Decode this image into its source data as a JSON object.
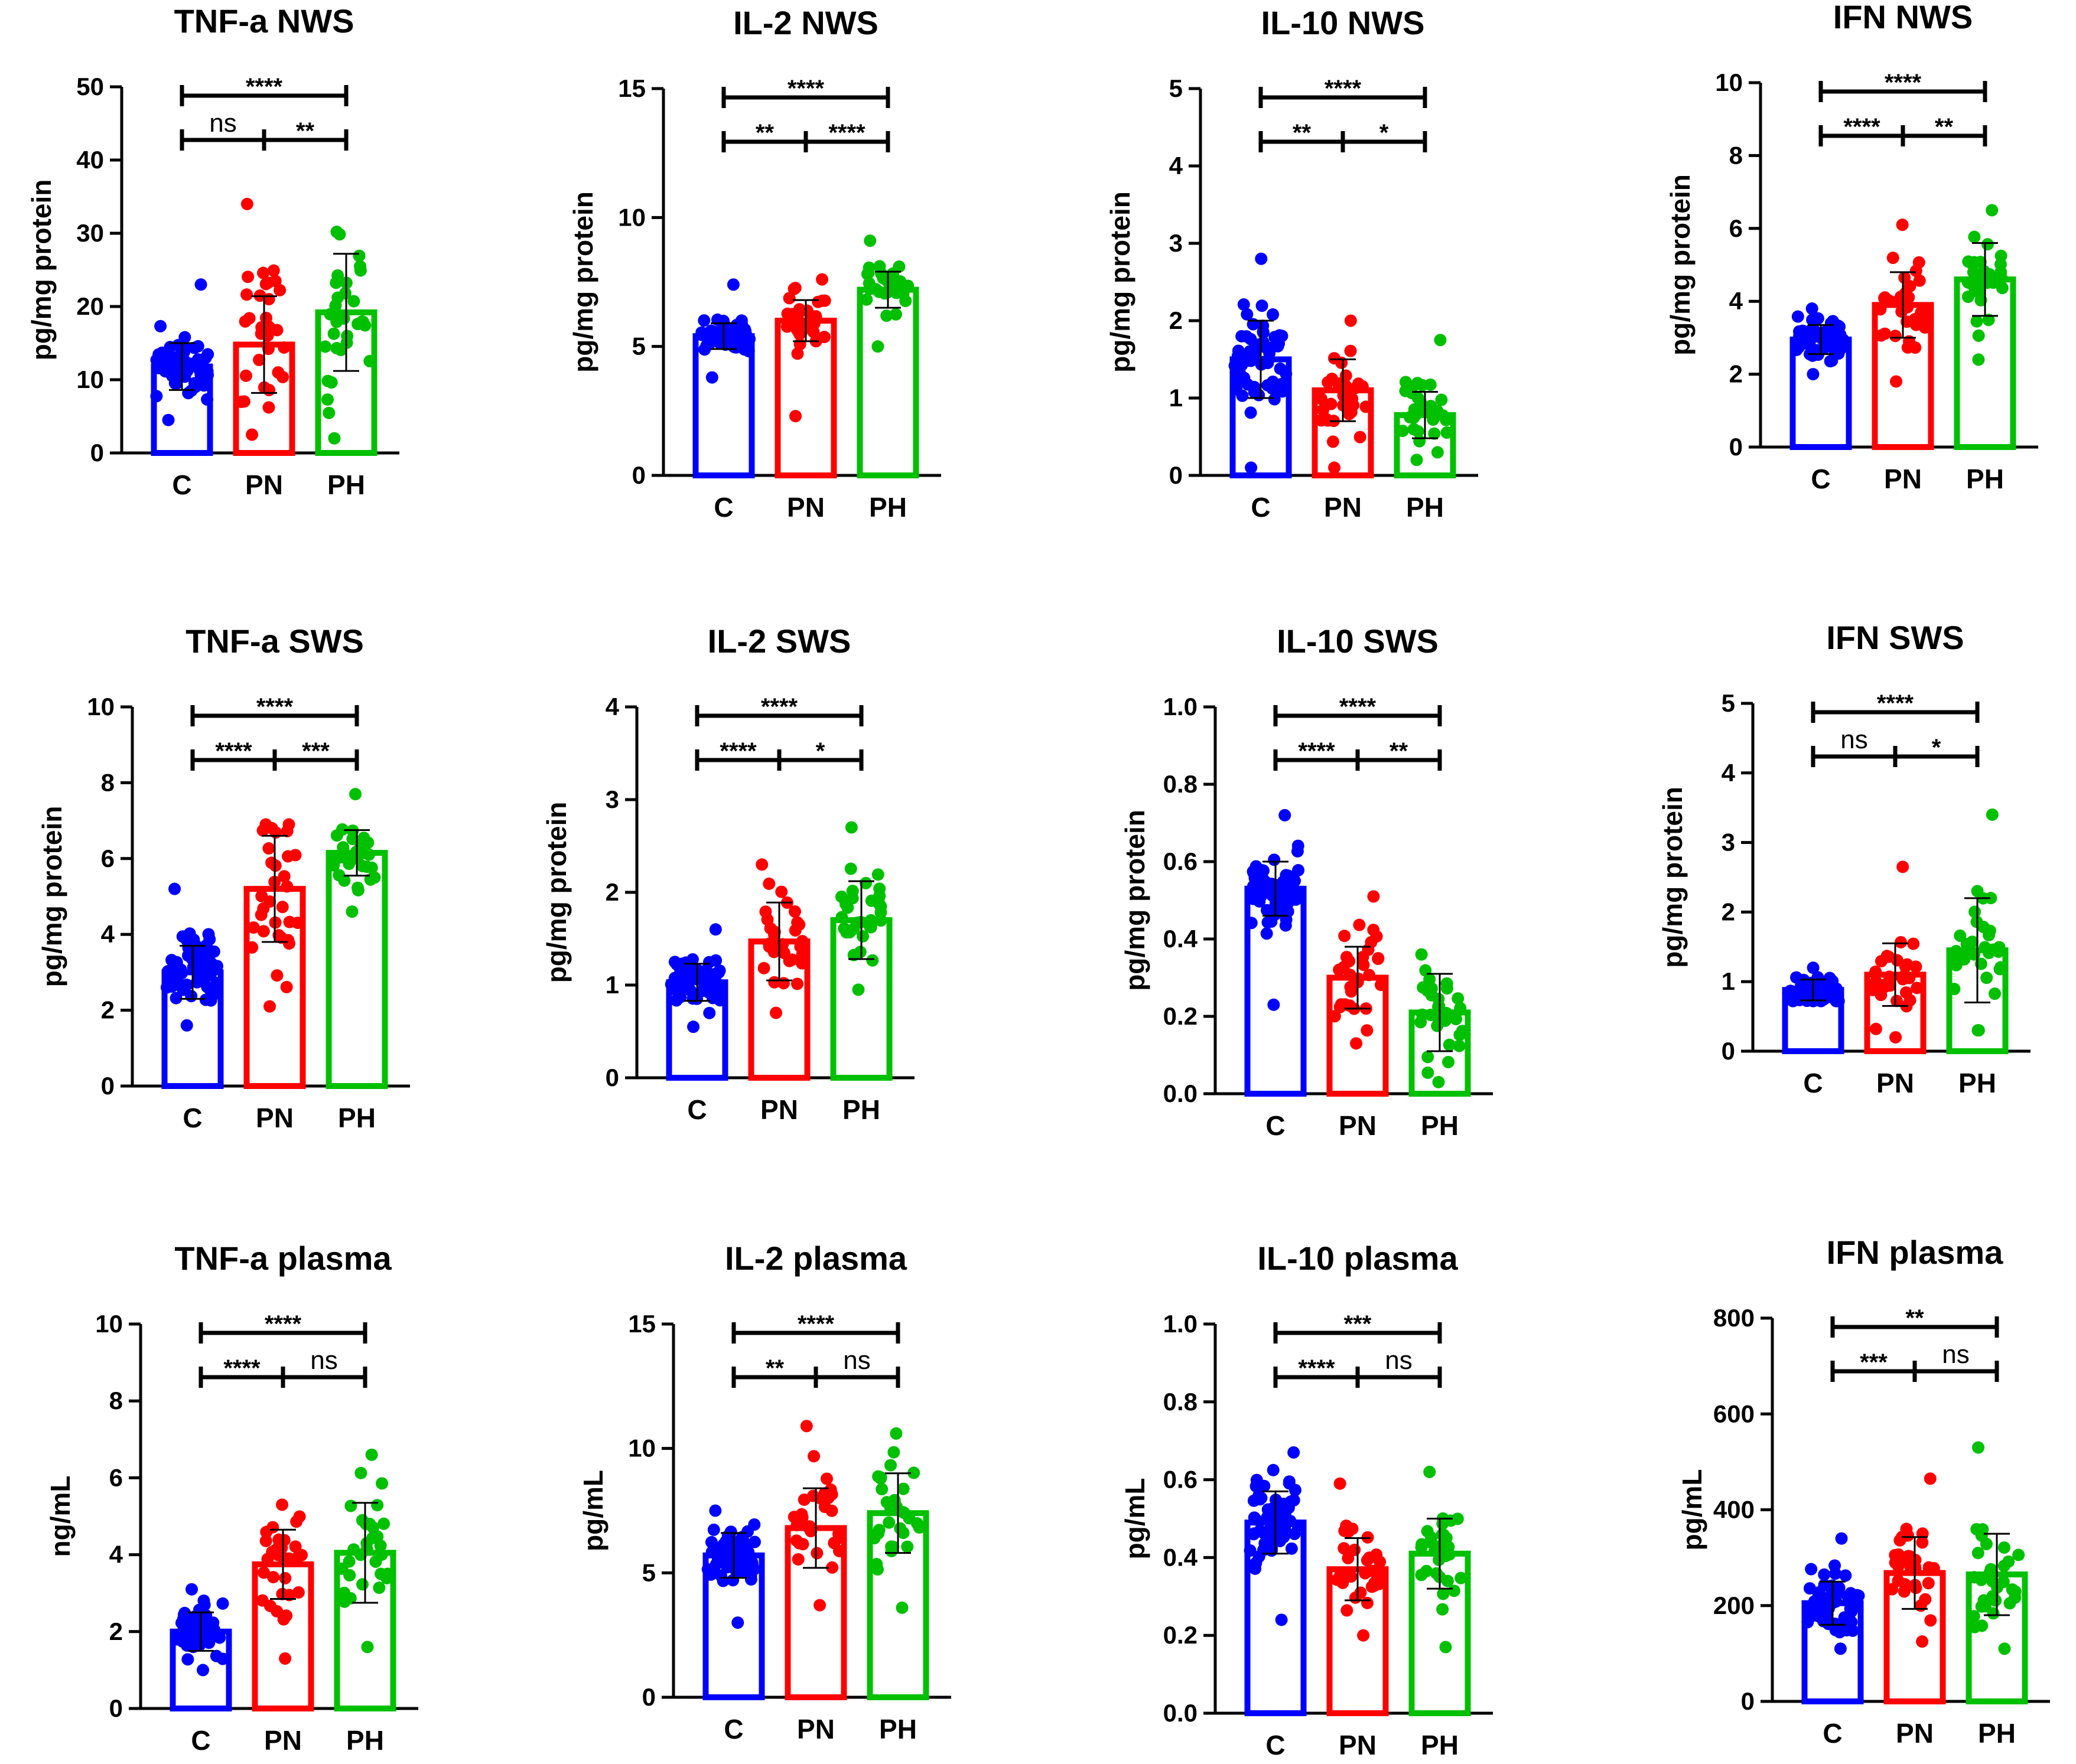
{
  "chart_data": [
    {
      "id": "tnf_nws",
      "type": "bar",
      "title": "TNF-a NWS",
      "ylabel": "pg/mg protein",
      "ylim": [
        0,
        50
      ],
      "yticks": [
        0,
        10,
        20,
        30,
        40,
        50
      ],
      "categories": [
        "C",
        "PN",
        "PH"
      ],
      "colors": [
        "#0000ff",
        "#ff0000",
        "#00c000"
      ],
      "values": [
        11.8,
        14.8,
        19.2
      ],
      "errors": [
        3.2,
        6.6,
        8
      ],
      "points_min": [
        4.5,
        2.5,
        2
      ],
      "points_max": [
        23,
        34,
        30.2
      ],
      "point_counts": [
        60,
        32,
        32
      ],
      "comparisons": [
        {
          "pair": "C-PH",
          "label": "****"
        },
        {
          "pair": "C-PN",
          "label": "ns"
        },
        {
          "pair": "PN-PH",
          "label": "**"
        }
      ]
    },
    {
      "id": "il2_nws",
      "type": "bar",
      "title": "IL-2 NWS",
      "ylabel": "pg/mg protein",
      "ylim": [
        0,
        15
      ],
      "yticks": [
        0,
        5,
        10,
        15
      ],
      "categories": [
        "C",
        "PN",
        "PH"
      ],
      "colors": [
        "#0000ff",
        "#ff0000",
        "#00c000"
      ],
      "values": [
        5.4,
        6.0,
        7.2
      ],
      "errors": [
        0.5,
        0.8,
        0.7
      ],
      "points_min": [
        3.8,
        2.3,
        5.0
      ],
      "points_max": [
        7.4,
        7.6,
        9.1
      ],
      "point_counts": [
        60,
        32,
        32
      ],
      "comparisons": [
        {
          "pair": "C-PH",
          "label": "****"
        },
        {
          "pair": "C-PN",
          "label": "**"
        },
        {
          "pair": "PN-PH",
          "label": "****"
        }
      ]
    },
    {
      "id": "il10_nws",
      "type": "bar",
      "title": "IL-10 NWS",
      "ylabel": "pg/mg protein",
      "ylim": [
        0,
        5
      ],
      "yticks": [
        0,
        1,
        2,
        3,
        4,
        5
      ],
      "categories": [
        "C",
        "PN",
        "PH"
      ],
      "colors": [
        "#0000ff",
        "#ff0000",
        "#00c000"
      ],
      "values": [
        1.5,
        1.1,
        0.78
      ],
      "errors": [
        0.5,
        0.4,
        0.3
      ],
      "points_min": [
        0.1,
        0.1,
        0.2
      ],
      "points_max": [
        2.8,
        2.0,
        1.75
      ],
      "point_counts": [
        60,
        32,
        32
      ],
      "comparisons": [
        {
          "pair": "C-PH",
          "label": "****"
        },
        {
          "pair": "C-PN",
          "label": "**"
        },
        {
          "pair": "PN-PH",
          "label": "*"
        }
      ]
    },
    {
      "id": "ifn_nws",
      "type": "bar",
      "title": "IFN NWS",
      "ylabel": "pg/mg protein",
      "ylim": [
        0,
        10
      ],
      "yticks": [
        0,
        2,
        4,
        6,
        8,
        10
      ],
      "categories": [
        "C",
        "PN",
        "PH"
      ],
      "colors": [
        "#0000ff",
        "#ff0000",
        "#00c000"
      ],
      "values": [
        2.95,
        3.9,
        4.6
      ],
      "errors": [
        0.4,
        0.9,
        1.0
      ],
      "points_min": [
        2.0,
        1.8,
        2.4
      ],
      "points_max": [
        3.8,
        6.1,
        6.5
      ],
      "point_counts": [
        60,
        32,
        32
      ],
      "comparisons": [
        {
          "pair": "C-PH",
          "label": "****"
        },
        {
          "pair": "C-PN",
          "label": "****"
        },
        {
          "pair": "PN-PH",
          "label": "**"
        }
      ]
    },
    {
      "id": "tnf_sws",
      "type": "bar",
      "title": "TNF-a SWS",
      "ylabel": "pg/mg protein",
      "ylim": [
        0,
        10
      ],
      "yticks": [
        0,
        2,
        4,
        6,
        8,
        10
      ],
      "categories": [
        "C",
        "PN",
        "PH"
      ],
      "colors": [
        "#0000ff",
        "#ff0000",
        "#00c000"
      ],
      "values": [
        3.0,
        5.2,
        6.15
      ],
      "errors": [
        0.7,
        1.4,
        0.6
      ],
      "points_min": [
        1.6,
        2.1,
        4.6
      ],
      "points_max": [
        5.2,
        6.9,
        7.7
      ],
      "point_counts": [
        60,
        32,
        32
      ],
      "comparisons": [
        {
          "pair": "C-PH",
          "label": "****"
        },
        {
          "pair": "C-PN",
          "label": "****"
        },
        {
          "pair": "PN-PH",
          "label": "***"
        }
      ]
    },
    {
      "id": "il2_sws",
      "type": "bar",
      "title": "IL-2 SWS",
      "ylabel": "pg/mg protein",
      "ylim": [
        0,
        4
      ],
      "yticks": [
        0,
        1,
        2,
        3,
        4
      ],
      "categories": [
        "C",
        "PN",
        "PH"
      ],
      "colors": [
        "#0000ff",
        "#ff0000",
        "#00c000"
      ],
      "values": [
        1.03,
        1.47,
        1.7
      ],
      "errors": [
        0.2,
        0.42,
        0.42
      ],
      "points_min": [
        0.55,
        0.7,
        0.95
      ],
      "points_max": [
        1.6,
        2.3,
        2.7
      ],
      "point_counts": [
        60,
        32,
        32
      ],
      "comparisons": [
        {
          "pair": "C-PH",
          "label": "****"
        },
        {
          "pair": "C-PN",
          "label": "****"
        },
        {
          "pair": "PN-PH",
          "label": "*"
        }
      ]
    },
    {
      "id": "il10_sws",
      "type": "bar",
      "title": "IL-10 SWS",
      "ylabel": "pg/mg protein",
      "ylim": [
        0,
        1.0
      ],
      "yticks": [
        0.0,
        0.2,
        0.4,
        0.6,
        0.8,
        1.0
      ],
      "categories": [
        "C",
        "PN",
        "PH"
      ],
      "colors": [
        "#0000ff",
        "#ff0000",
        "#00c000"
      ],
      "values": [
        0.53,
        0.3,
        0.21
      ],
      "errors": [
        0.07,
        0.08,
        0.1
      ],
      "points_min": [
        0.23,
        0.13,
        0.03
      ],
      "points_max": [
        0.72,
        0.51,
        0.36
      ],
      "point_counts": [
        60,
        32,
        32
      ],
      "comparisons": [
        {
          "pair": "C-PH",
          "label": "****"
        },
        {
          "pair": "C-PN",
          "label": "****"
        },
        {
          "pair": "PN-PH",
          "label": "**"
        }
      ]
    },
    {
      "id": "ifn_sws",
      "type": "bar",
      "title": "IFN SWS",
      "ylabel": "pg/mg protein",
      "ylim": [
        0,
        5
      ],
      "yticks": [
        0,
        1,
        2,
        3,
        4,
        5
      ],
      "categories": [
        "C",
        "PN",
        "PH"
      ],
      "colors": [
        "#0000ff",
        "#ff0000",
        "#00c000"
      ],
      "values": [
        0.88,
        1.1,
        1.45
      ],
      "errors": [
        0.15,
        0.45,
        0.75
      ],
      "points_min": [
        0.72,
        0.2,
        0.3
      ],
      "points_max": [
        1.2,
        2.65,
        3.4
      ],
      "point_counts": [
        60,
        32,
        32
      ],
      "comparisons": [
        {
          "pair": "C-PH",
          "label": "****"
        },
        {
          "pair": "C-PN",
          "label": "ns"
        },
        {
          "pair": "PN-PH",
          "label": "*"
        }
      ]
    },
    {
      "id": "tnf_plasma",
      "type": "bar",
      "title": "TNF-a plasma",
      "ylabel": "ng/mL",
      "ylim": [
        0,
        10
      ],
      "yticks": [
        0,
        2,
        4,
        6,
        8,
        10
      ],
      "categories": [
        "C",
        "PN",
        "PH"
      ],
      "colors": [
        "#0000ff",
        "#ff0000",
        "#00c000"
      ],
      "values": [
        2.0,
        3.75,
        4.05
      ],
      "errors": [
        0.5,
        0.9,
        1.3
      ],
      "points_min": [
        1.0,
        1.3,
        1.6
      ],
      "points_max": [
        3.1,
        5.3,
        6.6
      ],
      "point_counts": [
        60,
        32,
        32
      ],
      "comparisons": [
        {
          "pair": "C-PH",
          "label": "****"
        },
        {
          "pair": "C-PN",
          "label": "****"
        },
        {
          "pair": "PN-PH",
          "label": "ns"
        }
      ]
    },
    {
      "id": "il2_plasma",
      "type": "bar",
      "title": "IL-2 plasma",
      "ylabel": "pg/mL",
      "ylim": [
        0,
        15
      ],
      "yticks": [
        0,
        5,
        10,
        15
      ],
      "categories": [
        "C",
        "PN",
        "PH"
      ],
      "colors": [
        "#0000ff",
        "#ff0000",
        "#00c000"
      ],
      "values": [
        5.7,
        6.8,
        7.4
      ],
      "errors": [
        0.9,
        1.6,
        1.6
      ],
      "points_min": [
        3.0,
        3.7,
        3.6
      ],
      "points_max": [
        7.5,
        10.9,
        10.6
      ],
      "point_counts": [
        60,
        32,
        32
      ],
      "comparisons": [
        {
          "pair": "C-PH",
          "label": "****"
        },
        {
          "pair": "C-PN",
          "label": "**"
        },
        {
          "pair": "PN-PH",
          "label": "ns"
        }
      ]
    },
    {
      "id": "il10_plasma",
      "type": "bar",
      "title": "IL-10 plasma",
      "ylabel": "pg/mL",
      "ylim": [
        0,
        1.0
      ],
      "yticks": [
        0.0,
        0.2,
        0.4,
        0.6,
        0.8,
        1.0
      ],
      "categories": [
        "C",
        "PN",
        "PH"
      ],
      "colors": [
        "#0000ff",
        "#ff0000",
        "#00c000"
      ],
      "values": [
        0.49,
        0.37,
        0.41
      ],
      "errors": [
        0.08,
        0.08,
        0.09
      ],
      "points_min": [
        0.24,
        0.2,
        0.17
      ],
      "points_max": [
        0.67,
        0.59,
        0.62
      ],
      "point_counts": [
        60,
        32,
        32
      ],
      "comparisons": [
        {
          "pair": "C-PH",
          "label": "***"
        },
        {
          "pair": "C-PN",
          "label": "****"
        },
        {
          "pair": "PN-PH",
          "label": "ns"
        }
      ]
    },
    {
      "id": "ifn_plasma",
      "type": "bar",
      "title": "IFN plasma",
      "ylabel": "pg/mL",
      "ylim": [
        0,
        800
      ],
      "yticks": [
        0,
        200,
        400,
        600,
        800
      ],
      "categories": [
        "C",
        "PN",
        "PH"
      ],
      "colors": [
        "#0000ff",
        "#ff0000",
        "#00c000"
      ],
      "values": [
        205,
        268,
        265
      ],
      "errors": [
        45,
        75,
        85
      ],
      "points_min": [
        110,
        125,
        110
      ],
      "points_max": [
        340,
        465,
        530
      ],
      "point_counts": [
        60,
        32,
        32
      ],
      "comparisons": [
        {
          "pair": "C-PH",
          "label": "**"
        },
        {
          "pair": "C-PN",
          "label": "***"
        },
        {
          "pair": "PN-PH",
          "label": "ns"
        }
      ]
    }
  ]
}
